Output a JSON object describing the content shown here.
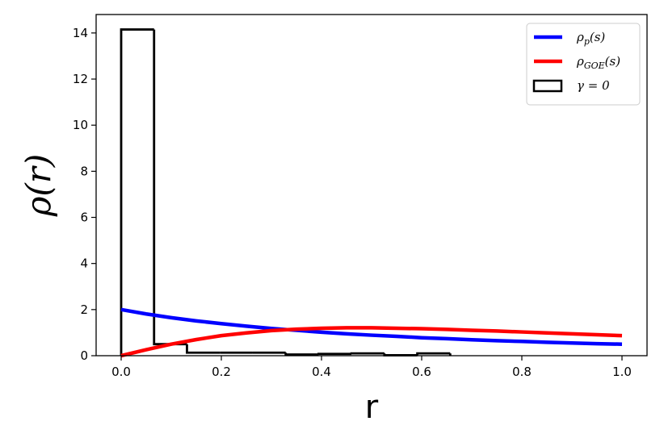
{
  "chart_data": {
    "type": "line",
    "xlabel": "r",
    "ylabel": "ρ(r)",
    "xlim": [
      -0.05,
      1.05
    ],
    "ylim": [
      0,
      14.8
    ],
    "x_ticks": [
      "0.0",
      "0.2",
      "0.4",
      "0.6",
      "0.8",
      "1.0"
    ],
    "y_ticks": [
      "0",
      "2",
      "4",
      "6",
      "8",
      "10",
      "12",
      "14"
    ],
    "grid": false,
    "legend_position": "top-right",
    "series": [
      {
        "name": "ρp(s)",
        "legend_main": "ρ",
        "legend_sub": "p",
        "legend_tail": "(s)",
        "color": "#0000ff",
        "style": "line",
        "x": [
          0,
          0.05,
          0.1,
          0.15,
          0.2,
          0.25,
          0.3,
          0.35,
          0.4,
          0.45,
          0.5,
          0.55,
          0.6,
          0.65,
          0.7,
          0.75,
          0.8,
          0.85,
          0.9,
          0.95,
          1.0
        ],
        "y": [
          2.0,
          1.81,
          1.65,
          1.51,
          1.39,
          1.28,
          1.18,
          1.1,
          1.02,
          0.95,
          0.89,
          0.84,
          0.78,
          0.74,
          0.69,
          0.65,
          0.62,
          0.58,
          0.55,
          0.52,
          0.5
        ]
      },
      {
        "name": "ρGOE(s)",
        "legend_main": "ρ",
        "legend_sub": "GOE",
        "legend_tail": "(s)",
        "color": "#ff0000",
        "style": "line",
        "x": [
          0,
          0.05,
          0.1,
          0.15,
          0.2,
          0.25,
          0.3,
          0.35,
          0.4,
          0.45,
          0.5,
          0.55,
          0.6,
          0.65,
          0.7,
          0.75,
          0.8,
          0.85,
          0.9,
          0.95,
          1.0
        ],
        "y": [
          0,
          0.26,
          0.5,
          0.7,
          0.87,
          0.99,
          1.09,
          1.15,
          1.19,
          1.21,
          1.21,
          1.19,
          1.17,
          1.14,
          1.1,
          1.07,
          1.03,
          0.99,
          0.95,
          0.91,
          0.87
        ]
      },
      {
        "name": "γ = 0",
        "legend_main": "γ = 0",
        "legend_sub": "",
        "legend_tail": "",
        "color": "#000000",
        "style": "step-histogram",
        "bin_edges": [
          0,
          0.0657,
          0.1314,
          0.1971,
          0.2628,
          0.3285,
          0.3942,
          0.4599,
          0.5256,
          0.5913,
          0.657
        ],
        "values": [
          14.15,
          0.5,
          0.13,
          0.13,
          0.13,
          0.05,
          0.08,
          0.1,
          0.02,
          0.1
        ]
      }
    ]
  }
}
